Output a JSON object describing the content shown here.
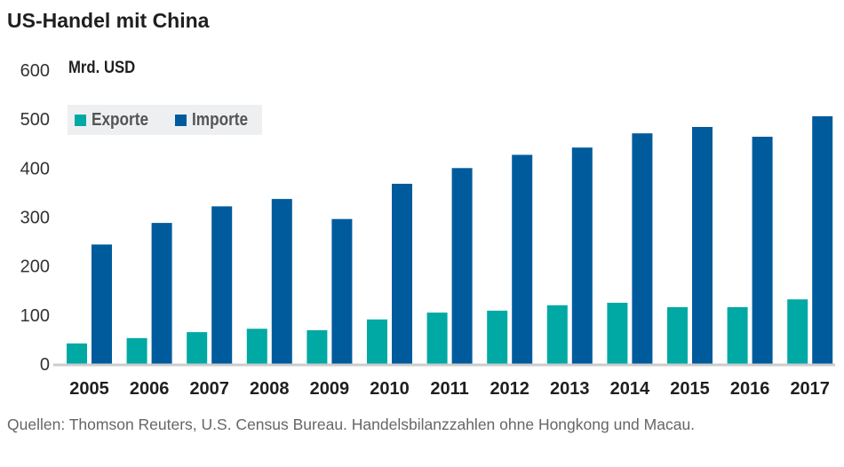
{
  "title": "US-Handel mit China",
  "source": "Quellen: Thomson Reuters, U.S. Census Bureau. Handelsbilanzzahlen ohne Hongkong und Macau.",
  "colors": {
    "exports": "#00a9a3",
    "imports": "#005b9c",
    "axis": "#cccccc",
    "legend_bg": "#eeeff1"
  },
  "chart_data": {
    "type": "bar",
    "title": "US-Handel mit China",
    "xlabel": "",
    "ylabel": "Mrd. USD",
    "ylim": [
      0,
      600
    ],
    "yticks": [
      "0",
      "100",
      "200",
      "300",
      "400",
      "500",
      "600"
    ],
    "grid": false,
    "legend_position": "top-left",
    "categories": [
      "2005",
      "2006",
      "2007",
      "2008",
      "2009",
      "2010",
      "2011",
      "2012",
      "2013",
      "2014",
      "2015",
      "2016",
      "2017"
    ],
    "series": [
      {
        "name": "Exporte",
        "values": [
          42,
          53,
          65,
          72,
          69,
          91,
          105,
          109,
          120,
          125,
          116,
          116,
          132
        ]
      },
      {
        "name": "Importe",
        "values": [
          244,
          288,
          322,
          337,
          296,
          368,
          400,
          427,
          442,
          471,
          484,
          464,
          506
        ]
      }
    ]
  }
}
